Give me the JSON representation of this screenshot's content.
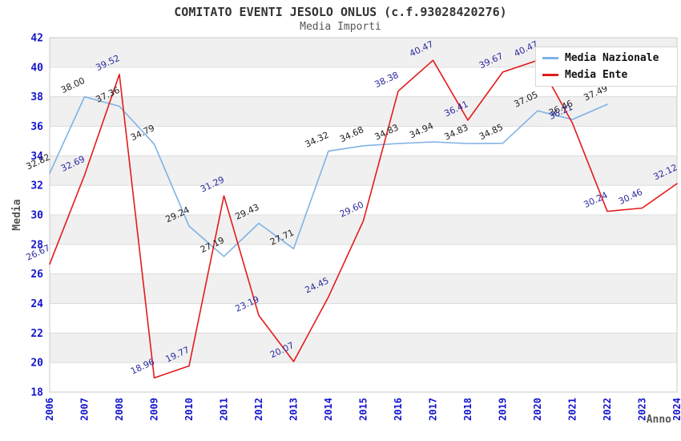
{
  "header": {
    "title": "COMITATO EVENTI JESOLO ONLUS (c.f.93028420276)",
    "subtitle": "Media Importi"
  },
  "axes": {
    "y_title": "Media",
    "x_title": "Anno"
  },
  "legend": {
    "items": [
      {
        "label": "Media Nazionale",
        "color": "#7FB2E5"
      },
      {
        "label": "Media Ente",
        "color": "#E51A1A"
      }
    ]
  },
  "chart_data": {
    "type": "line",
    "title": "COMITATO EVENTI JESOLO ONLUS (c.f.93028420276)",
    "subtitle": "Media Importi",
    "xlabel": "Anno",
    "ylabel": "Media",
    "x": [
      2006,
      2007,
      2008,
      2009,
      2010,
      2011,
      2012,
      2013,
      2014,
      2015,
      2016,
      2017,
      2018,
      2019,
      2020,
      2021,
      2022,
      2023,
      2024
    ],
    "series": [
      {
        "name": "Media Nazionale",
        "color": "#7FB2E5",
        "label_color": "#222222",
        "values": [
          32.82,
          38.0,
          37.36,
          34.79,
          29.24,
          27.19,
          29.43,
          27.71,
          34.32,
          34.68,
          34.83,
          34.94,
          34.83,
          34.85,
          37.05,
          36.46,
          37.49,
          null,
          null
        ]
      },
      {
        "name": "Media Ente",
        "color": "#E51A1A",
        "label_color": "#2B2BA0",
        "values": [
          26.67,
          32.69,
          39.52,
          18.96,
          19.77,
          31.29,
          23.19,
          20.07,
          24.45,
          29.6,
          38.38,
          40.47,
          36.41,
          39.67,
          40.47,
          36.21,
          30.24,
          30.46,
          32.12
        ]
      }
    ],
    "ylim": [
      18,
      42
    ],
    "y_tick_step": 2,
    "grid": "horizontal-bands",
    "legend_position": "top-right",
    "style_colors": {
      "tick_label": "#1414CC",
      "band": "#F0F0F0",
      "gridline": "#DCDCDC",
      "plot_border": "#C8C8C8"
    }
  }
}
